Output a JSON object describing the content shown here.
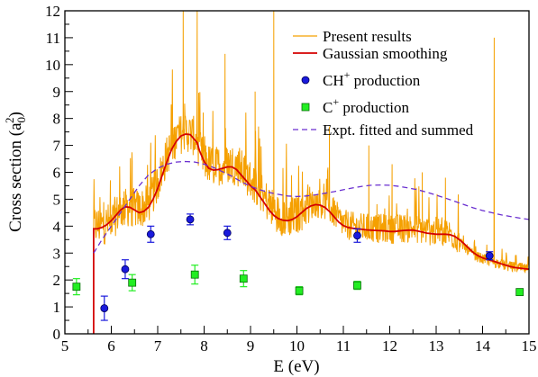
{
  "chart_data": {
    "type": "line",
    "title": "",
    "xlabel": "E (eV)",
    "ylabel_main": "Cross section (a",
    "ylabel_sub": "0",
    "ylabel_sup": "2",
    "ylabel_close": ")",
    "xlim": [
      5,
      15
    ],
    "ylim": [
      0,
      12
    ],
    "xticks": [
      5,
      6,
      7,
      8,
      9,
      10,
      11,
      12,
      13,
      14,
      15
    ],
    "yticks": [
      0,
      1,
      2,
      3,
      4,
      5,
      6,
      7,
      8,
      9,
      10,
      11,
      12
    ],
    "grid": false,
    "legend_position": "top-right",
    "colors": {
      "present": "#f5a000",
      "gaussian": "#d40000",
      "ch": "#1a1adc",
      "c": "#22ee22",
      "expt": "#6a2fd0"
    },
    "legend": [
      {
        "key": "present",
        "label": "Present results",
        "marker": "line"
      },
      {
        "key": "gaussian",
        "label": "Gaussian smoothing",
        "marker": "line"
      },
      {
        "key": "ch",
        "label_main": "CH",
        "label_sup": "+",
        "label_rest": " production",
        "marker": "circle"
      },
      {
        "key": "c",
        "label_main": "C",
        "label_sup": "+",
        "label_rest": " production",
        "marker": "square"
      },
      {
        "key": "expt",
        "label": "Expt. fitted and summed",
        "marker": "dashed"
      }
    ],
    "series": [
      {
        "key": "gaussian",
        "x": [
          5.62,
          5.62,
          5.7,
          5.8,
          5.9,
          6.0,
          6.1,
          6.2,
          6.3,
          6.4,
          6.5,
          6.6,
          6.7,
          6.8,
          6.9,
          7.0,
          7.1,
          7.2,
          7.3,
          7.4,
          7.5,
          7.6,
          7.7,
          7.8,
          7.85,
          7.9,
          8.0,
          8.1,
          8.2,
          8.3,
          8.4,
          8.5,
          8.6,
          8.7,
          8.8,
          8.9,
          9.0,
          9.1,
          9.2,
          9.3,
          9.4,
          9.5,
          9.6,
          9.7,
          9.8,
          9.9,
          10.0,
          10.1,
          10.2,
          10.3,
          10.4,
          10.5,
          10.6,
          10.7,
          10.8,
          10.9,
          11.0,
          11.1,
          11.2,
          11.3,
          11.4,
          11.5,
          11.6,
          11.7,
          11.8,
          11.9,
          12.0,
          12.1,
          12.2,
          12.3,
          12.4,
          12.5,
          12.6,
          12.7,
          12.8,
          12.9,
          13.0,
          13.1,
          13.2,
          13.3,
          13.4,
          13.5,
          13.6,
          13.7,
          13.8,
          13.9,
          14.0,
          14.1,
          14.2,
          14.3,
          14.4,
          14.5,
          14.6,
          14.7,
          14.8,
          14.9,
          15.0
        ],
        "y": [
          0.0,
          3.9,
          3.9,
          3.95,
          4.05,
          4.2,
          4.4,
          4.6,
          4.72,
          4.7,
          4.6,
          4.5,
          4.55,
          4.7,
          5.0,
          5.4,
          5.9,
          6.4,
          6.85,
          7.15,
          7.35,
          7.42,
          7.4,
          7.2,
          7.1,
          6.8,
          6.4,
          6.15,
          6.08,
          6.1,
          6.15,
          6.2,
          6.2,
          6.1,
          5.9,
          5.7,
          5.5,
          5.35,
          5.1,
          4.85,
          4.6,
          4.4,
          4.28,
          4.22,
          4.2,
          4.25,
          4.35,
          4.5,
          4.65,
          4.75,
          4.8,
          4.78,
          4.7,
          4.55,
          4.35,
          4.15,
          4.02,
          3.95,
          3.92,
          3.9,
          3.88,
          3.86,
          3.85,
          3.84,
          3.83,
          3.82,
          3.8,
          3.8,
          3.82,
          3.84,
          3.85,
          3.85,
          3.82,
          3.78,
          3.74,
          3.72,
          3.7,
          3.7,
          3.7,
          3.68,
          3.62,
          3.5,
          3.35,
          3.18,
          3.02,
          2.9,
          2.82,
          2.76,
          2.72,
          2.66,
          2.6,
          2.55,
          2.5,
          2.46,
          2.44,
          2.42,
          2.4
        ]
      },
      {
        "key": "expt",
        "x": [
          5.62,
          5.8,
          6.0,
          6.2,
          6.4,
          6.6,
          6.8,
          7.0,
          7.2,
          7.4,
          7.6,
          7.8,
          8.0,
          8.2,
          8.4,
          8.6,
          8.8,
          9.0,
          9.2,
          9.4,
          9.6,
          9.8,
          10.0,
          10.2,
          10.4,
          10.6,
          10.8,
          11.0,
          11.2,
          11.4,
          11.6,
          11.8,
          12.0,
          12.2,
          12.4,
          12.6,
          12.8,
          13.0,
          13.2,
          13.4,
          13.6,
          13.8,
          14.0,
          14.2,
          14.4,
          14.6,
          14.8,
          15.0
        ],
        "y": [
          3.0,
          3.5,
          4.0,
          4.5,
          5.0,
          5.5,
          5.9,
          6.15,
          6.3,
          6.38,
          6.4,
          6.38,
          6.3,
          6.18,
          6.02,
          5.85,
          5.65,
          5.48,
          5.35,
          5.25,
          5.18,
          5.12,
          5.1,
          5.12,
          5.16,
          5.22,
          5.28,
          5.35,
          5.42,
          5.48,
          5.52,
          5.53,
          5.52,
          5.48,
          5.42,
          5.35,
          5.26,
          5.15,
          5.04,
          4.92,
          4.8,
          4.68,
          4.58,
          4.5,
          4.42,
          4.36,
          4.3,
          4.25
        ]
      }
    ],
    "present_envelope": {
      "key": "present",
      "x": [
        5.62,
        5.8,
        6.0,
        6.2,
        6.4,
        6.6,
        6.8,
        7.0,
        7.2,
        7.4,
        7.6,
        7.8,
        8.0,
        8.2,
        8.4,
        8.6,
        8.8,
        9.0,
        9.2,
        9.4,
        9.6,
        9.8,
        10.0,
        10.2,
        10.4,
        10.6,
        10.8,
        11.0,
        11.2,
        11.4,
        11.6,
        11.8,
        12.0,
        12.2,
        12.4,
        12.6,
        12.8,
        13.0,
        13.2,
        13.4,
        13.6,
        13.8,
        14.0,
        14.2,
        14.4,
        14.6,
        14.8,
        15.0
      ],
      "y": [
        3.9,
        3.9,
        4.05,
        4.5,
        4.6,
        4.5,
        4.7,
        5.5,
        6.5,
        7.2,
        7.4,
        7.2,
        6.3,
        6.1,
        6.15,
        6.2,
        6.0,
        5.6,
        5.2,
        4.7,
        4.3,
        4.2,
        4.3,
        4.6,
        4.8,
        4.7,
        4.4,
        4.0,
        3.9,
        3.85,
        3.84,
        3.82,
        3.8,
        3.82,
        3.85,
        3.82,
        3.74,
        3.7,
        3.7,
        3.55,
        3.2,
        2.9,
        2.75,
        2.65,
        2.55,
        2.46,
        2.42,
        2.35
      ],
      "spikes": [
        {
          "x": 7.55,
          "y": 12.0
        },
        {
          "x": 7.85,
          "y": 12.0
        },
        {
          "x": 8.45,
          "y": 10.4
        },
        {
          "x": 9.5,
          "y": 12.0
        },
        {
          "x": 6.45,
          "y": 6.4
        },
        {
          "x": 6.85,
          "y": 7.1
        },
        {
          "x": 7.3,
          "y": 7.8
        },
        {
          "x": 9.1,
          "y": 9.0
        },
        {
          "x": 10.7,
          "y": 7.7
        },
        {
          "x": 11.55,
          "y": 7.0
        },
        {
          "x": 12.05,
          "y": 6.3
        },
        {
          "x": 12.7,
          "y": 6.0
        },
        {
          "x": 13.2,
          "y": 5.8
        },
        {
          "x": 14.25,
          "y": 11.0
        }
      ]
    },
    "scatter": [
      {
        "key": "ch",
        "x": [
          5.85,
          6.3,
          6.85,
          7.7,
          8.5,
          11.3,
          14.15
        ],
        "y": [
          0.95,
          2.4,
          3.7,
          4.25,
          3.75,
          3.65,
          2.9
        ],
        "err": [
          0.45,
          0.35,
          0.3,
          0.2,
          0.25,
          0.25,
          0.15
        ]
      },
      {
        "key": "c",
        "x": [
          5.25,
          6.45,
          7.8,
          8.85,
          10.05,
          11.3,
          14.8
        ],
        "y": [
          1.75,
          1.9,
          2.2,
          2.05,
          1.6,
          1.8,
          1.55
        ],
        "err": [
          0.3,
          0.3,
          0.35,
          0.3,
          0.15,
          0.15,
          0.12
        ]
      }
    ]
  }
}
